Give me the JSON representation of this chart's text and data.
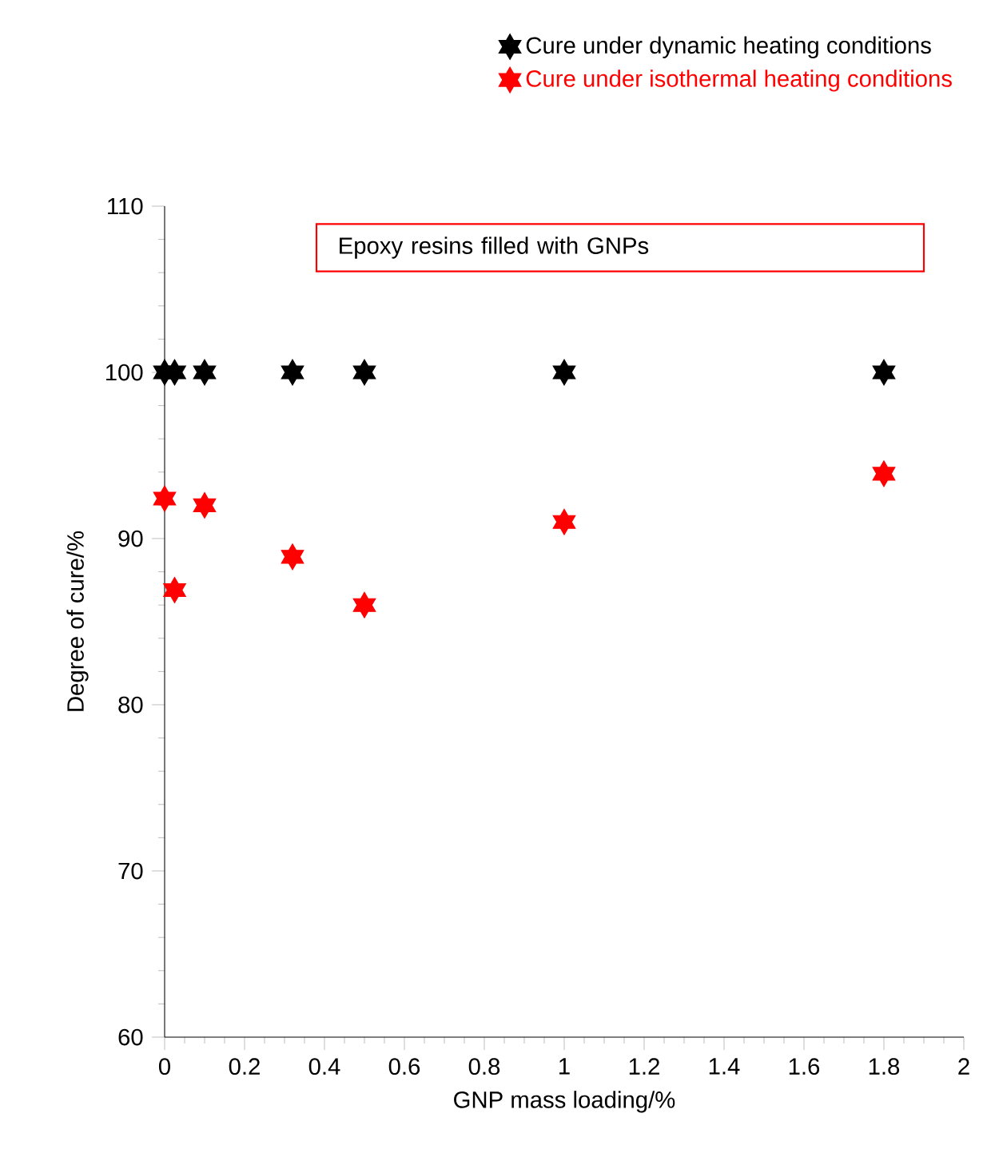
{
  "chart_data": {
    "type": "scatter",
    "xlabel": "GNP mass loading/%",
    "ylabel": "Degree of cure/%",
    "annotations": [
      "Epoxy resins filled with GNPs"
    ],
    "xlim": [
      0,
      2
    ],
    "ylim": [
      60,
      110
    ],
    "xticks": [
      0,
      0.2,
      0.4,
      0.6,
      0.8,
      1,
      1.2,
      1.4,
      1.6,
      1.8,
      2
    ],
    "yticks": [
      60,
      70,
      80,
      90,
      100,
      110
    ],
    "marker": "star",
    "legend": "top right",
    "x": [
      0,
      0.025,
      0.1,
      0.32,
      0.5,
      1,
      1.8
    ],
    "series": [
      {
        "name": "Cure under dynamic heating conditions",
        "color": "#000000",
        "values": [
          100,
          100,
          100,
          100,
          100,
          100,
          100
        ]
      },
      {
        "name": "Cure under isothermal heating conditions",
        "color": "#ff0000",
        "values": [
          92.4,
          86.9,
          92.0,
          88.9,
          86.0,
          91.0,
          93.9
        ]
      }
    ]
  }
}
